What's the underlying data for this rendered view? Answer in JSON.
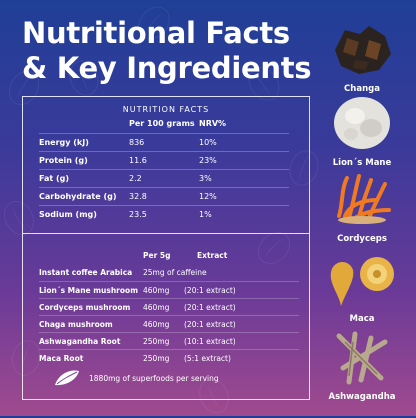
{
  "title": "Nutritional Facts & Key Ingredients",
  "nutrition_facts": {
    "heading": "NUTRITION FACTS",
    "columns": [
      "Per 100 grams",
      "NRV%"
    ],
    "rows": [
      {
        "name": "Energy (kJ)",
        "per100": "836",
        "nrv": "10%"
      },
      {
        "name": "Protein (g)",
        "per100": "11.6",
        "nrv": "23%"
      },
      {
        "name": "Fat (g)",
        "per100": "2.2",
        "nrv": "3%"
      },
      {
        "name": "Carbohydrate (g)",
        "per100": "32.8",
        "nrv": "12%"
      },
      {
        "name": "Sodium (mg)",
        "per100": "23.5",
        "nrv": "1%"
      }
    ]
  },
  "ingredients_table": {
    "columns": [
      "Per 5g",
      "Extract"
    ],
    "rows": [
      {
        "name": "Instant coffee Arabica",
        "amount": "25mg of caffeine",
        "extract": ""
      },
      {
        "name": "Lion´s Mane mushroom",
        "amount": "460mg",
        "extract": "(20:1 extract)"
      },
      {
        "name": "Cordyceps mushroom",
        "amount": "460mg",
        "extract": "(20:1 extract)"
      },
      {
        "name": "Chaga  mushroom",
        "amount": "460mg",
        "extract": "(20:1 extract)"
      },
      {
        "name": "Ashwagandha Root",
        "amount": "250mg",
        "extract": "(10:1 extract)"
      },
      {
        "name": "Maca Root",
        "amount": "250mg",
        "extract": "(5:1 extract)"
      }
    ],
    "serving_note": "1880mg of superfoods per serving"
  },
  "ingredients": [
    {
      "label": "Changa",
      "icon": "chaga-mushroom-icon"
    },
    {
      "label": "Lion´s Mane",
      "icon": "lions-mane-mushroom-icon"
    },
    {
      "label": "Cordyceps",
      "icon": "cordyceps-icon"
    },
    {
      "label": "Maca",
      "icon": "maca-root-icon"
    },
    {
      "label": "Ashwagandha",
      "icon": "ashwagandha-root-icon"
    }
  ],
  "colors": {
    "background_top": "#1f3f96",
    "background_bottom": "#a04a8e",
    "text": "#ffffff"
  }
}
